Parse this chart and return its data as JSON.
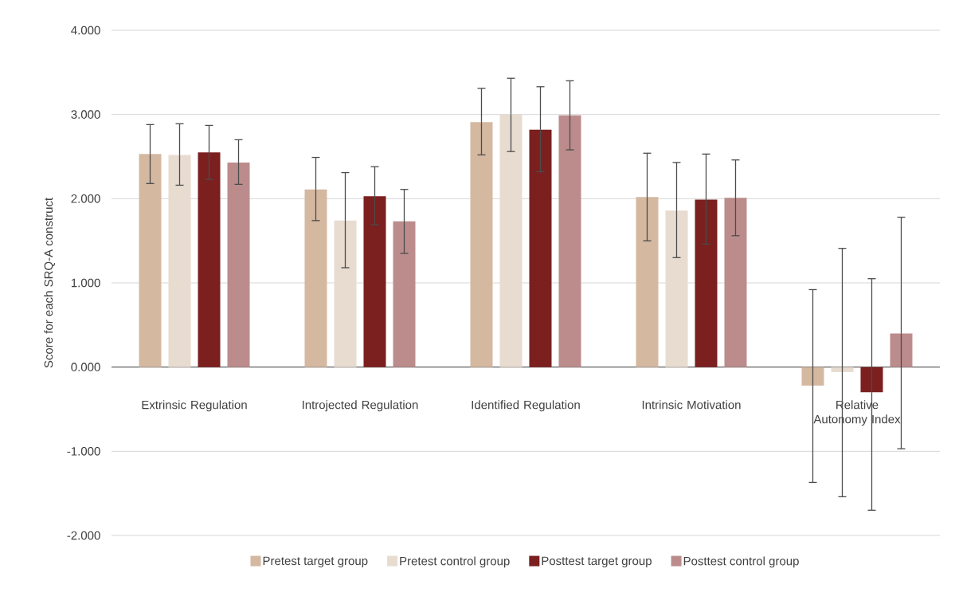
{
  "chart_data": {
    "type": "bar",
    "ylabel": "Score for each SRQ-A construct",
    "categories": [
      "Extrinsic Regulation",
      "Introjected Regulation",
      "Identified Regulation",
      "Intrinsic Motivation",
      "Relative Autonomy Index"
    ],
    "series": [
      {
        "name": "Pretest target group",
        "color": "#d4b8a0",
        "values": [
          2.53,
          2.11,
          2.91,
          2.02,
          -0.22
        ],
        "errors": [
          [
            2.18,
            2.88
          ],
          [
            1.74,
            2.49
          ],
          [
            2.52,
            3.31
          ],
          [
            1.5,
            2.54
          ],
          [
            -1.37,
            0.92
          ]
        ]
      },
      {
        "name": "Pretest control group",
        "color": "#e8dcd0",
        "values": [
          2.52,
          1.74,
          3.0,
          1.86,
          -0.06
        ],
        "errors": [
          [
            2.16,
            2.89
          ],
          [
            1.18,
            2.31
          ],
          [
            2.56,
            3.43
          ],
          [
            1.3,
            2.43
          ],
          [
            -1.54,
            1.41
          ]
        ]
      },
      {
        "name": "Posttest target group",
        "color": "#7b1f1f",
        "values": [
          2.55,
          2.03,
          2.82,
          1.99,
          -0.3
        ],
        "errors": [
          [
            2.23,
            2.87
          ],
          [
            1.69,
            2.38
          ],
          [
            2.32,
            3.33
          ],
          [
            1.46,
            2.53
          ],
          [
            -1.7,
            1.05
          ]
        ]
      },
      {
        "name": "Posttest control group",
        "color": "#bc8c8c",
        "values": [
          2.43,
          1.73,
          2.99,
          2.01,
          0.4
        ],
        "errors": [
          [
            2.17,
            2.7
          ],
          [
            1.35,
            2.11
          ],
          [
            2.58,
            3.4
          ],
          [
            1.56,
            2.46
          ],
          [
            -0.97,
            1.78
          ]
        ]
      }
    ],
    "ylim": [
      -2,
      4
    ],
    "yticks": [
      {
        "value": -2,
        "label": "-2.000"
      },
      {
        "value": -1,
        "label": "-1.000"
      },
      {
        "value": 0,
        "label": "0.000"
      },
      {
        "value": 1,
        "label": "1.000"
      },
      {
        "value": 2,
        "label": "2.000"
      },
      {
        "value": 3,
        "label": "3.000"
      },
      {
        "value": 4,
        "label": "4.000"
      }
    ],
    "grid": "y",
    "legend": "bottom"
  }
}
